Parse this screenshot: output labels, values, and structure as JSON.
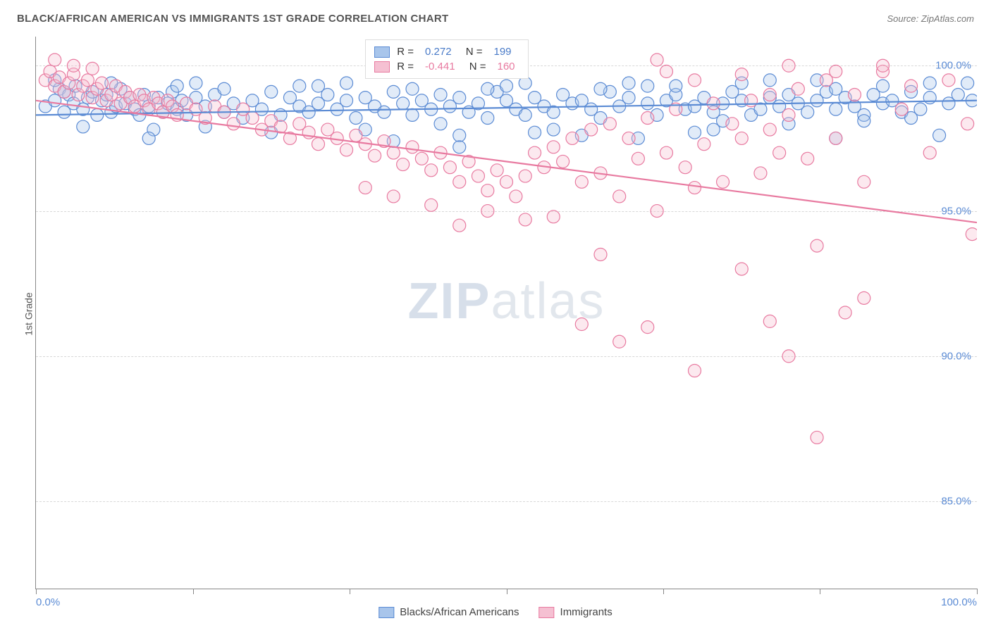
{
  "title": "BLACK/AFRICAN AMERICAN VS IMMIGRANTS 1ST GRADE CORRELATION CHART",
  "source": "Source: ZipAtlas.com",
  "ylabel": "1st Grade",
  "watermark_a": "ZIP",
  "watermark_b": "atlas",
  "chart": {
    "type": "scatter",
    "background_color": "#ffffff",
    "grid_color": "#d8d8d8",
    "axis_color": "#888888",
    "xlim": [
      0,
      100
    ],
    "ylim": [
      82,
      101
    ],
    "xticks": [
      0,
      16.67,
      33.33,
      50,
      66.67,
      83.33,
      100
    ],
    "xtick_labels_shown": {
      "0": "0.0%",
      "100": "100.0%"
    },
    "yticks": [
      85,
      90,
      95,
      100
    ],
    "ytick_labels": {
      "85": "85.0%",
      "90": "90.0%",
      "95": "95.0%",
      "100": "100.0%"
    },
    "label_color": "#5b8bd4",
    "label_fontsize": 15,
    "marker_radius": 9,
    "marker_opacity": 0.35,
    "series": [
      {
        "name": "Blacks/African Americans",
        "color_fill": "#a8c5eb",
        "color_stroke": "#5b8bd4",
        "R": 0.272,
        "N": 199,
        "regression": {
          "x1": 0,
          "y1": 98.3,
          "x2": 100,
          "y2": 98.8
        },
        "points": [
          [
            1,
            98.6
          ],
          [
            2,
            98.8
          ],
          [
            2.5,
            99.2
          ],
          [
            3,
            98.4
          ],
          [
            3.5,
            99.0
          ],
          [
            4,
            98.7
          ],
          [
            4.2,
            99.3
          ],
          [
            5,
            98.5
          ],
          [
            5.5,
            98.9
          ],
          [
            6,
            99.1
          ],
          [
            6.5,
            98.3
          ],
          [
            7,
            98.8
          ],
          [
            7.5,
            99.0
          ],
          [
            8,
            98.4
          ],
          [
            8.5,
            98.6
          ],
          [
            9,
            99.2
          ],
          [
            9.5,
            98.7
          ],
          [
            10,
            98.9
          ],
          [
            10.5,
            98.5
          ],
          [
            11,
            98.3
          ],
          [
            11.5,
            99.0
          ],
          [
            12,
            98.6
          ],
          [
            12.5,
            97.8
          ],
          [
            13,
            98.9
          ],
          [
            13.5,
            98.4
          ],
          [
            14,
            98.7
          ],
          [
            14.5,
            99.1
          ],
          [
            15,
            98.5
          ],
          [
            15.5,
            98.8
          ],
          [
            16,
            98.3
          ],
          [
            17,
            98.9
          ],
          [
            18,
            98.6
          ],
          [
            19,
            99.0
          ],
          [
            20,
            98.4
          ],
          [
            21,
            98.7
          ],
          [
            22,
            98.2
          ],
          [
            23,
            98.8
          ],
          [
            24,
            98.5
          ],
          [
            25,
            99.1
          ],
          [
            26,
            98.3
          ],
          [
            27,
            98.9
          ],
          [
            28,
            98.6
          ],
          [
            29,
            98.4
          ],
          [
            30,
            98.7
          ],
          [
            31,
            99.0
          ],
          [
            32,
            98.5
          ],
          [
            33,
            98.8
          ],
          [
            34,
            98.2
          ],
          [
            35,
            98.9
          ],
          [
            36,
            98.6
          ],
          [
            37,
            98.4
          ],
          [
            38,
            99.1
          ],
          [
            39,
            98.7
          ],
          [
            40,
            98.3
          ],
          [
            41,
            98.8
          ],
          [
            42,
            98.5
          ],
          [
            43,
            99.0
          ],
          [
            44,
            98.6
          ],
          [
            45,
            98.9
          ],
          [
            46,
            98.4
          ],
          [
            47,
            98.7
          ],
          [
            48,
            98.2
          ],
          [
            49,
            99.1
          ],
          [
            50,
            98.8
          ],
          [
            51,
            98.5
          ],
          [
            52,
            98.3
          ],
          [
            53,
            98.9
          ],
          [
            54,
            98.6
          ],
          [
            55,
            98.4
          ],
          [
            56,
            99.0
          ],
          [
            57,
            98.7
          ],
          [
            58,
            98.8
          ],
          [
            59,
            98.5
          ],
          [
            60,
            98.2
          ],
          [
            61,
            99.1
          ],
          [
            62,
            98.6
          ],
          [
            63,
            98.9
          ],
          [
            64,
            97.5
          ],
          [
            65,
            98.7
          ],
          [
            66,
            98.3
          ],
          [
            67,
            98.8
          ],
          [
            68,
            99.0
          ],
          [
            69,
            98.5
          ],
          [
            70,
            98.6
          ],
          [
            71,
            98.9
          ],
          [
            72,
            98.4
          ],
          [
            73,
            98.7
          ],
          [
            74,
            99.1
          ],
          [
            75,
            98.8
          ],
          [
            76,
            98.3
          ],
          [
            77,
            98.5
          ],
          [
            78,
            98.9
          ],
          [
            79,
            98.6
          ],
          [
            80,
            99.0
          ],
          [
            81,
            98.7
          ],
          [
            82,
            98.4
          ],
          [
            83,
            98.8
          ],
          [
            84,
            99.1
          ],
          [
            85,
            98.5
          ],
          [
            86,
            98.9
          ],
          [
            87,
            98.6
          ],
          [
            88,
            98.3
          ],
          [
            89,
            99.0
          ],
          [
            90,
            98.7
          ],
          [
            91,
            98.8
          ],
          [
            92,
            98.4
          ],
          [
            93,
            99.1
          ],
          [
            94,
            98.5
          ],
          [
            95,
            98.9
          ],
          [
            96,
            97.6
          ],
          [
            97,
            98.7
          ],
          [
            98,
            99.0
          ],
          [
            99,
            99.4
          ],
          [
            99.5,
            98.8
          ],
          [
            2,
            99.5
          ],
          [
            3,
            99.1
          ],
          [
            5,
            97.9
          ],
          [
            8,
            99.4
          ],
          [
            12,
            97.5
          ],
          [
            15,
            99.3
          ],
          [
            20,
            99.2
          ],
          [
            25,
            97.7
          ],
          [
            30,
            99.3
          ],
          [
            35,
            97.8
          ],
          [
            40,
            99.2
          ],
          [
            45,
            97.6
          ],
          [
            50,
            99.3
          ],
          [
            55,
            97.8
          ],
          [
            60,
            99.2
          ],
          [
            65,
            99.3
          ],
          [
            70,
            97.7
          ],
          [
            75,
            99.4
          ],
          [
            80,
            98.0
          ],
          [
            85,
            99.2
          ],
          [
            90,
            99.3
          ],
          [
            95,
            99.4
          ],
          [
            45,
            97.2
          ],
          [
            58,
            97.6
          ],
          [
            72,
            97.8
          ],
          [
            85,
            97.5
          ],
          [
            18,
            97.9
          ],
          [
            38,
            97.4
          ],
          [
            52,
            99.4
          ],
          [
            68,
            99.3
          ],
          [
            78,
            99.5
          ],
          [
            88,
            98.1
          ],
          [
            33,
            99.4
          ],
          [
            43,
            98.0
          ],
          [
            53,
            97.7
          ],
          [
            63,
            99.4
          ],
          [
            73,
            98.1
          ],
          [
            83,
            99.5
          ],
          [
            93,
            98.2
          ],
          [
            28,
            99.3
          ],
          [
            48,
            99.2
          ],
          [
            17,
            99.4
          ]
        ]
      },
      {
        "name": "Immigrants",
        "color_fill": "#f5c0d2",
        "color_stroke": "#e87aa0",
        "R": -0.441,
        "N": 160,
        "regression": {
          "x1": 0,
          "y1": 98.8,
          "x2": 100,
          "y2": 94.6
        },
        "points": [
          [
            1,
            99.5
          ],
          [
            1.5,
            99.8
          ],
          [
            2,
            99.3
          ],
          [
            2.5,
            99.6
          ],
          [
            3,
            99.1
          ],
          [
            3.5,
            99.4
          ],
          [
            4,
            99.7
          ],
          [
            4.5,
            99.0
          ],
          [
            5,
            99.3
          ],
          [
            5.5,
            99.5
          ],
          [
            6,
            98.9
          ],
          [
            6.5,
            99.2
          ],
          [
            7,
            99.4
          ],
          [
            7.5,
            98.8
          ],
          [
            8,
            99.0
          ],
          [
            8.5,
            99.3
          ],
          [
            9,
            98.7
          ],
          [
            9.5,
            99.1
          ],
          [
            10,
            98.9
          ],
          [
            10.5,
            98.6
          ],
          [
            11,
            99.0
          ],
          [
            11.5,
            98.8
          ],
          [
            12,
            98.5
          ],
          [
            12.5,
            98.9
          ],
          [
            13,
            98.7
          ],
          [
            13.5,
            98.4
          ],
          [
            14,
            98.8
          ],
          [
            14.5,
            98.6
          ],
          [
            15,
            98.3
          ],
          [
            16,
            98.7
          ],
          [
            17,
            98.5
          ],
          [
            18,
            98.2
          ],
          [
            19,
            98.6
          ],
          [
            20,
            98.4
          ],
          [
            21,
            98.0
          ],
          [
            22,
            98.5
          ],
          [
            23,
            98.2
          ],
          [
            24,
            97.8
          ],
          [
            25,
            98.1
          ],
          [
            26,
            97.9
          ],
          [
            27,
            97.5
          ],
          [
            28,
            98.0
          ],
          [
            29,
            97.7
          ],
          [
            30,
            97.3
          ],
          [
            31,
            97.8
          ],
          [
            32,
            97.5
          ],
          [
            33,
            97.1
          ],
          [
            34,
            97.6
          ],
          [
            35,
            97.3
          ],
          [
            36,
            96.9
          ],
          [
            37,
            97.4
          ],
          [
            38,
            97.0
          ],
          [
            39,
            96.6
          ],
          [
            40,
            97.2
          ],
          [
            41,
            96.8
          ],
          [
            42,
            96.4
          ],
          [
            43,
            97.0
          ],
          [
            44,
            96.5
          ],
          [
            45,
            96.0
          ],
          [
            46,
            96.7
          ],
          [
            47,
            96.2
          ],
          [
            48,
            95.7
          ],
          [
            49,
            96.4
          ],
          [
            50,
            96.0
          ],
          [
            51,
            95.5
          ],
          [
            52,
            96.2
          ],
          [
            53,
            97.0
          ],
          [
            54,
            96.5
          ],
          [
            55,
            97.2
          ],
          [
            56,
            96.7
          ],
          [
            57,
            97.5
          ],
          [
            58,
            96.0
          ],
          [
            59,
            97.8
          ],
          [
            60,
            96.3
          ],
          [
            61,
            98.0
          ],
          [
            62,
            95.5
          ],
          [
            63,
            97.5
          ],
          [
            64,
            96.8
          ],
          [
            65,
            98.2
          ],
          [
            66,
            95.0
          ],
          [
            67,
            97.0
          ],
          [
            68,
            98.5
          ],
          [
            69,
            96.5
          ],
          [
            70,
            95.8
          ],
          [
            71,
            97.3
          ],
          [
            72,
            98.7
          ],
          [
            73,
            96.0
          ],
          [
            74,
            98.0
          ],
          [
            75,
            97.5
          ],
          [
            76,
            98.8
          ],
          [
            77,
            96.3
          ],
          [
            78,
            99.0
          ],
          [
            79,
            97.0
          ],
          [
            80,
            98.3
          ],
          [
            81,
            99.2
          ],
          [
            82,
            96.8
          ],
          [
            84,
            99.5
          ],
          [
            85,
            97.5
          ],
          [
            87,
            99.0
          ],
          [
            88,
            96.0
          ],
          [
            90,
            99.8
          ],
          [
            92,
            98.5
          ],
          [
            93,
            99.3
          ],
          [
            95,
            97.0
          ],
          [
            97,
            99.5
          ],
          [
            99,
            98.0
          ],
          [
            99.5,
            94.2
          ],
          [
            58,
            91.1
          ],
          [
            60,
            93.5
          ],
          [
            62,
            90.5
          ],
          [
            65,
            91.0
          ],
          [
            70,
            89.5
          ],
          [
            75,
            93.0
          ],
          [
            78,
            91.2
          ],
          [
            80,
            90.0
          ],
          [
            83,
            93.8
          ],
          [
            86,
            91.5
          ],
          [
            83,
            87.2
          ],
          [
            88,
            92.0
          ],
          [
            2,
            100.2
          ],
          [
            4,
            100.0
          ],
          [
            6,
            99.9
          ],
          [
            55,
            94.8
          ],
          [
            48,
            95.0
          ],
          [
            42,
            95.2
          ],
          [
            38,
            95.5
          ],
          [
            35,
            95.8
          ],
          [
            67,
            99.8
          ],
          [
            70,
            99.5
          ],
          [
            75,
            99.7
          ],
          [
            80,
            100.0
          ],
          [
            85,
            99.8
          ],
          [
            90,
            100.0
          ],
          [
            66,
            100.2
          ],
          [
            78,
            97.8
          ],
          [
            52,
            94.7
          ],
          [
            45,
            94.5
          ]
        ]
      }
    ]
  },
  "legend_bottom": [
    {
      "label": "Blacks/African Americans",
      "fill": "#a8c5eb",
      "stroke": "#5b8bd4"
    },
    {
      "label": "Immigrants",
      "fill": "#f5c0d2",
      "stroke": "#e87aa0"
    }
  ]
}
